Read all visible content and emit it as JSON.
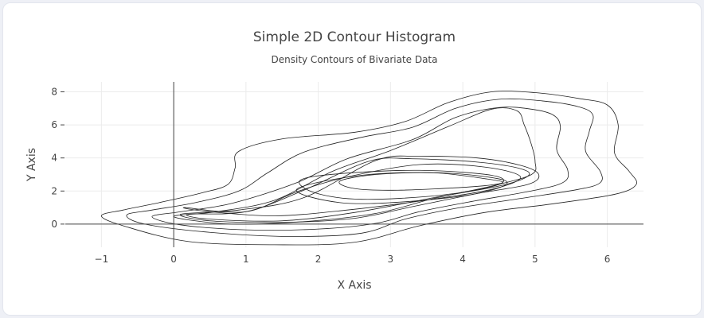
{
  "chart_data": {
    "type": "contour",
    "title": "Simple 2D Contour Histogram",
    "subtitle": "Density Contours of Bivariate Data",
    "xlabel": "X Axis",
    "ylabel": "Y Axis",
    "xlim": [
      -1.5,
      6.5
    ],
    "ylim": [
      -1.4,
      8.6
    ],
    "x_ticks": [
      -1,
      0,
      1,
      2,
      3,
      4,
      5,
      6
    ],
    "y_ticks": [
      0,
      2,
      4,
      6,
      8
    ],
    "grid": true,
    "zero_lines": true,
    "line_color": "#222222",
    "contours": [
      {
        "name": "level-1",
        "points": [
          [
            -1.0,
            0.5
          ],
          [
            -0.7,
            0.85
          ],
          [
            -0.2,
            1.3
          ],
          [
            0.4,
            1.9
          ],
          [
            0.75,
            2.4
          ],
          [
            0.85,
            3.4
          ],
          [
            0.9,
            4.4
          ],
          [
            1.5,
            5.15
          ],
          [
            2.5,
            5.55
          ],
          [
            3.2,
            6.2
          ],
          [
            3.8,
            7.35
          ],
          [
            4.4,
            8.0
          ],
          [
            5.0,
            7.95
          ],
          [
            5.6,
            7.6
          ],
          [
            6.0,
            7.2
          ],
          [
            6.15,
            6.0
          ],
          [
            6.1,
            4.3
          ],
          [
            6.3,
            3.2
          ],
          [
            6.4,
            2.4
          ],
          [
            6.1,
            1.8
          ],
          [
            5.2,
            1.2
          ],
          [
            4.3,
            0.7
          ],
          [
            3.4,
            -0.1
          ],
          [
            2.5,
            -1.1
          ],
          [
            1.4,
            -1.25
          ],
          [
            0.2,
            -1.05
          ],
          [
            -0.7,
            -0.1
          ],
          [
            -1.0,
            0.5
          ]
        ]
      },
      {
        "name": "level-2",
        "points": [
          [
            -0.65,
            0.55
          ],
          [
            -0.3,
            0.85
          ],
          [
            0.3,
            1.3
          ],
          [
            0.9,
            2.0
          ],
          [
            1.3,
            3.1
          ],
          [
            1.8,
            4.35
          ],
          [
            2.6,
            5.25
          ],
          [
            3.3,
            5.85
          ],
          [
            3.9,
            7.0
          ],
          [
            4.5,
            7.55
          ],
          [
            5.1,
            7.45
          ],
          [
            5.6,
            7.1
          ],
          [
            5.8,
            6.6
          ],
          [
            5.75,
            5.6
          ],
          [
            5.7,
            4.4
          ],
          [
            5.9,
            3.2
          ],
          [
            5.9,
            2.5
          ],
          [
            5.6,
            2.1
          ],
          [
            4.8,
            1.55
          ],
          [
            3.9,
            0.95
          ],
          [
            3.2,
            0.3
          ],
          [
            2.6,
            -0.55
          ],
          [
            1.6,
            -0.75
          ],
          [
            0.5,
            -0.5
          ],
          [
            -0.4,
            0.0
          ],
          [
            -0.65,
            0.55
          ]
        ]
      },
      {
        "name": "level-3",
        "points": [
          [
            -0.3,
            0.45
          ],
          [
            0.1,
            0.75
          ],
          [
            0.8,
            1.25
          ],
          [
            1.7,
            2.5
          ],
          [
            2.4,
            3.95
          ],
          [
            3.3,
            5.1
          ],
          [
            3.9,
            6.45
          ],
          [
            4.5,
            7.05
          ],
          [
            4.95,
            6.95
          ],
          [
            5.25,
            6.6
          ],
          [
            5.35,
            5.9
          ],
          [
            5.3,
            4.5
          ],
          [
            5.45,
            3.3
          ],
          [
            5.4,
            2.55
          ],
          [
            5.0,
            2.05
          ],
          [
            4.1,
            1.35
          ],
          [
            3.4,
            0.75
          ],
          [
            2.8,
            0.05
          ],
          [
            2.0,
            -0.3
          ],
          [
            1.0,
            -0.35
          ],
          [
            0.1,
            -0.05
          ],
          [
            -0.3,
            0.45
          ]
        ]
      },
      {
        "name": "level-4",
        "points": [
          [
            0.0,
            0.45
          ],
          [
            0.6,
            0.75
          ],
          [
            1.4,
            1.45
          ],
          [
            2.2,
            3.2
          ],
          [
            3.0,
            4.45
          ],
          [
            3.8,
            5.9
          ],
          [
            4.4,
            6.95
          ],
          [
            4.75,
            6.85
          ],
          [
            4.85,
            6.0
          ],
          [
            4.95,
            4.8
          ],
          [
            5.0,
            3.8
          ],
          [
            4.95,
            3.0
          ],
          [
            4.4,
            2.3
          ],
          [
            3.6,
            1.55
          ],
          [
            2.8,
            0.65
          ],
          [
            1.8,
            0.15
          ],
          [
            0.8,
            0.0
          ],
          [
            0.0,
            0.45
          ]
        ]
      },
      {
        "name": "level-5",
        "points": [
          [
            0.1,
            0.6
          ],
          [
            0.9,
            0.85
          ],
          [
            1.8,
            1.6
          ],
          [
            2.8,
            3.85
          ],
          [
            3.4,
            4.1
          ],
          [
            4.2,
            4.0
          ],
          [
            4.8,
            3.55
          ],
          [
            5.05,
            3.0
          ],
          [
            4.9,
            2.4
          ],
          [
            4.2,
            1.85
          ],
          [
            3.3,
            1.05
          ],
          [
            2.5,
            0.35
          ],
          [
            1.5,
            0.1
          ],
          [
            0.5,
            0.2
          ],
          [
            0.1,
            0.6
          ]
        ]
      },
      {
        "name": "level-6",
        "points": [
          [
            0.2,
            0.6
          ],
          [
            1.0,
            0.75
          ],
          [
            1.8,
            2.05
          ],
          [
            2.7,
            3.8
          ],
          [
            3.3,
            3.95
          ],
          [
            4.2,
            3.75
          ],
          [
            4.8,
            3.35
          ],
          [
            4.9,
            2.9
          ],
          [
            4.5,
            2.3
          ],
          [
            3.6,
            1.6
          ],
          [
            2.5,
            0.7
          ],
          [
            1.5,
            0.2
          ],
          [
            0.5,
            0.3
          ],
          [
            0.2,
            0.6
          ]
        ]
      },
      {
        "name": "level-7",
        "points": [
          [
            0.15,
            1.0
          ],
          [
            1.0,
            0.75
          ],
          [
            1.7,
            1.95
          ],
          [
            2.4,
            2.85
          ],
          [
            3.4,
            3.6
          ],
          [
            4.3,
            3.45
          ],
          [
            4.8,
            2.85
          ],
          [
            4.4,
            2.1
          ],
          [
            3.5,
            1.45
          ],
          [
            2.4,
            0.85
          ],
          [
            1.4,
            0.5
          ],
          [
            0.5,
            0.75
          ],
          [
            0.15,
            1.0
          ]
        ]
      },
      {
        "name": "level-8",
        "points": [
          [
            1.7,
            2.1
          ],
          [
            2.6,
            2.95
          ],
          [
            3.7,
            3.1
          ],
          [
            4.6,
            2.6
          ],
          [
            4.2,
            1.85
          ],
          [
            3.2,
            1.35
          ],
          [
            2.3,
            1.3
          ],
          [
            1.7,
            2.1
          ]
        ]
      },
      {
        "name": "level-9",
        "points": [
          [
            1.75,
            2.65
          ],
          [
            2.3,
            3.05
          ],
          [
            3.4,
            3.25
          ],
          [
            4.4,
            2.95
          ],
          [
            4.5,
            2.4
          ],
          [
            3.7,
            1.75
          ],
          [
            2.6,
            1.5
          ],
          [
            1.95,
            1.9
          ],
          [
            1.75,
            2.65
          ]
        ]
      },
      {
        "name": "level-10",
        "points": [
          [
            2.3,
            2.6
          ],
          [
            2.8,
            3.0
          ],
          [
            3.6,
            3.1
          ],
          [
            4.3,
            2.75
          ],
          [
            4.55,
            2.5
          ],
          [
            4.1,
            2.25
          ],
          [
            3.1,
            2.05
          ],
          [
            2.5,
            2.15
          ],
          [
            2.3,
            2.6
          ]
        ]
      }
    ]
  }
}
